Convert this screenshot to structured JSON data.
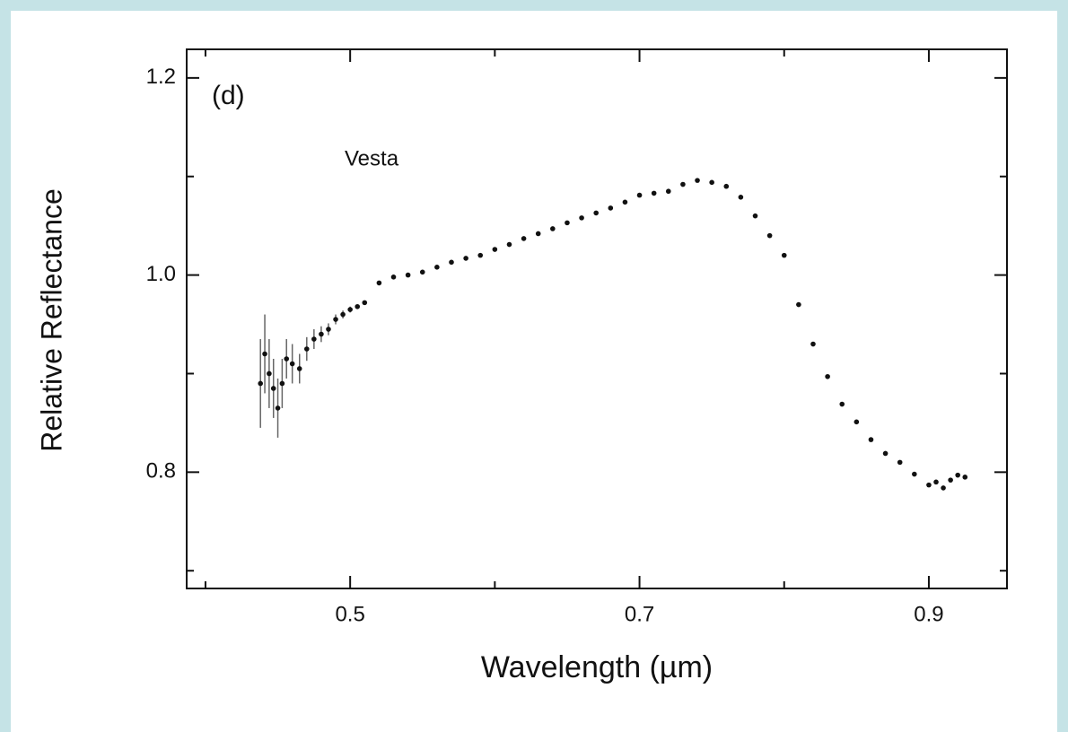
{
  "chart_data": {
    "type": "scatter",
    "annotations": [
      "(d)",
      "Vesta"
    ],
    "x_label": "Wavelength (µm)",
    "y_label": "Relative Reflectance",
    "xlim": [
      0.387,
      0.954
    ],
    "ylim": [
      0.682,
      1.229
    ],
    "xticks": [
      0.5,
      0.7,
      0.9
    ],
    "xminor": [
      0.4,
      0.6,
      0.8
    ],
    "yticks": [
      0.8,
      {
        "value": 1,
        "label": "1.0"
      },
      1.2
    ],
    "yminor": [
      0.7,
      0.9,
      1.1
    ],
    "color": "#111111",
    "x": [
      0.438,
      0.441,
      0.444,
      0.447,
      0.45,
      0.453,
      0.456,
      0.46,
      0.465,
      0.47,
      0.475,
      0.48,
      0.485,
      0.49,
      0.495,
      0.5,
      0.505,
      0.51,
      0.52,
      0.53,
      0.54,
      0.55,
      0.56,
      0.57,
      0.58,
      0.59,
      0.6,
      0.61,
      0.62,
      0.63,
      0.64,
      0.65,
      0.66,
      0.67,
      0.68,
      0.69,
      0.7,
      0.71,
      0.72,
      0.73,
      0.74,
      0.75,
      0.76,
      0.77,
      0.78,
      0.79,
      0.8,
      0.81,
      0.82,
      0.83,
      0.84,
      0.85,
      0.86,
      0.87,
      0.88,
      0.89,
      0.9,
      0.905,
      0.91,
      0.915,
      0.92,
      0.925
    ],
    "values": [
      0.89,
      0.92,
      0.9,
      0.885,
      0.865,
      0.89,
      0.915,
      0.91,
      0.905,
      0.925,
      0.935,
      0.94,
      0.945,
      0.955,
      0.96,
      0.965,
      0.968,
      0.972,
      0.992,
      0.998,
      1.0,
      1.003,
      1.008,
      1.013,
      1.017,
      1.02,
      1.026,
      1.031,
      1.037,
      1.042,
      1.047,
      1.053,
      1.058,
      1.063,
      1.068,
      1.074,
      1.081,
      1.083,
      1.085,
      1.092,
      1.096,
      1.094,
      1.09,
      1.079,
      1.06,
      1.04,
      1.02,
      0.97,
      0.93,
      0.897,
      0.869,
      0.851,
      0.833,
      0.819,
      0.81,
      0.798,
      0.787,
      0.79,
      0.784,
      0.792,
      0.797,
      0.795
    ],
    "errors": [
      0.045,
      0.04,
      0.035,
      0.03,
      0.03,
      0.025,
      0.02,
      0.02,
      0.015,
      0.012,
      0.01,
      0.008,
      0.006,
      0.005,
      0.004,
      0.003,
      0,
      0,
      0,
      0,
      0,
      0,
      0,
      0,
      0,
      0,
      0,
      0,
      0,
      0,
      0,
      0,
      0,
      0,
      0,
      0,
      0,
      0,
      0,
      0,
      0,
      0,
      0,
      0,
      0,
      0,
      0,
      0,
      0,
      0,
      0,
      0,
      0,
      0,
      0,
      0,
      0,
      0,
      0,
      0,
      0,
      0
    ]
  }
}
